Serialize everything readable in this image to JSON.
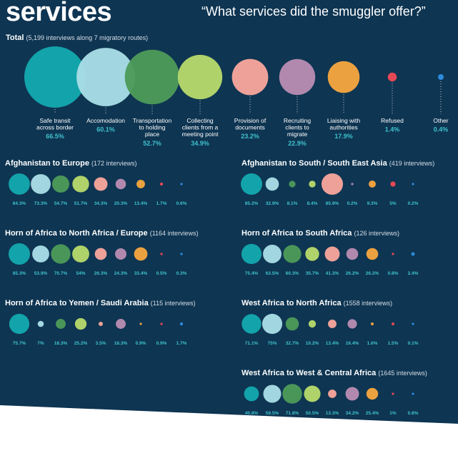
{
  "heading": "services",
  "question": "“What services did the smuggler offer?”",
  "colors": {
    "background": "#0e3552",
    "safe_transit": "#14a8ae",
    "accommodation": "#a9dde6",
    "transportation": "#4d9a5a",
    "collecting_clients": "#b6d86b",
    "provision_documents": "#f7a59b",
    "recruiting_clients": "#b88cb2",
    "liaising_authorities": "#f6a540",
    "refused": "#ee4a55",
    "other": "#2f8fe3",
    "value_text": "#3fc2cc",
    "label_text": "#ffffff"
  },
  "chart_data": {
    "type": "bubble",
    "services": [
      {
        "key": "safe_transit",
        "label": "Safe transit across border"
      },
      {
        "key": "accommodation",
        "label": "Accomodation"
      },
      {
        "key": "transportation",
        "label": "Transportation to holding place"
      },
      {
        "key": "collecting_clients",
        "label": "Collecting clients from a meeting point"
      },
      {
        "key": "provision_documents",
        "label": "Provision of documents"
      },
      {
        "key": "recruiting_clients",
        "label": "Recruiting clients to migrate"
      },
      {
        "key": "liaising_authorities",
        "label": "Liaising with authorities"
      },
      {
        "key": "refused",
        "label": "Refused"
      },
      {
        "key": "other",
        "label": "Other"
      }
    ],
    "total": {
      "title": "Total",
      "subtitle": "(5,199 interviews along 7 migratory routes)",
      "values": [
        66.5,
        60.1,
        52.7,
        34.9,
        23.2,
        22.9,
        17.9,
        1.4,
        0.4
      ]
    },
    "routes": [
      {
        "name": "Afghanistan to Europe",
        "interviews": "(172 interviews)",
        "values": [
          84.3,
          73.3,
          54.7,
          51.7,
          34.3,
          20.3,
          13.4,
          1.7,
          0.6
        ]
      },
      {
        "name": "Afghanistan to South / South East Asia",
        "interviews": "(419 interviews)",
        "values": [
          85.2,
          32.9,
          8.1,
          8.4,
          85.9,
          0.2,
          9.3,
          5,
          0.2
        ]
      },
      {
        "name": "Horn of Africa to North Africa / Europe",
        "interviews": "(1164 interviews)",
        "values": [
          85.3,
          53.9,
          70.7,
          54,
          26.3,
          24.3,
          33.4,
          0.5,
          0.3
        ]
      },
      {
        "name": "Horn of Africa to South Africa",
        "interviews": "(126 interviews)",
        "values": [
          75.4,
          63.5,
          60.3,
          35.7,
          41.3,
          26.2,
          26.2,
          0.8,
          2.4
        ]
      },
      {
        "name": "Horn of Africa to Yemen / Saudi Arabia",
        "interviews": "(115 interviews)",
        "values": [
          75.7,
          7,
          18.3,
          25.2,
          3.5,
          18.3,
          0.9,
          0.9,
          1.7
        ]
      },
      {
        "name": "West Africa to North Africa",
        "interviews": "(1558 interviews)",
        "values": [
          71.1,
          75,
          32.7,
          10.2,
          13.4,
          16.4,
          1.6,
          1.5,
          0.1
        ]
      },
      {
        "name": "West Africa to West & Central Africa",
        "interviews": "(1645 interviews)",
        "values": [
          40.8,
          59.5,
          71.8,
          50.5,
          13.3,
          34.2,
          25.4,
          1,
          0.8
        ]
      }
    ]
  }
}
